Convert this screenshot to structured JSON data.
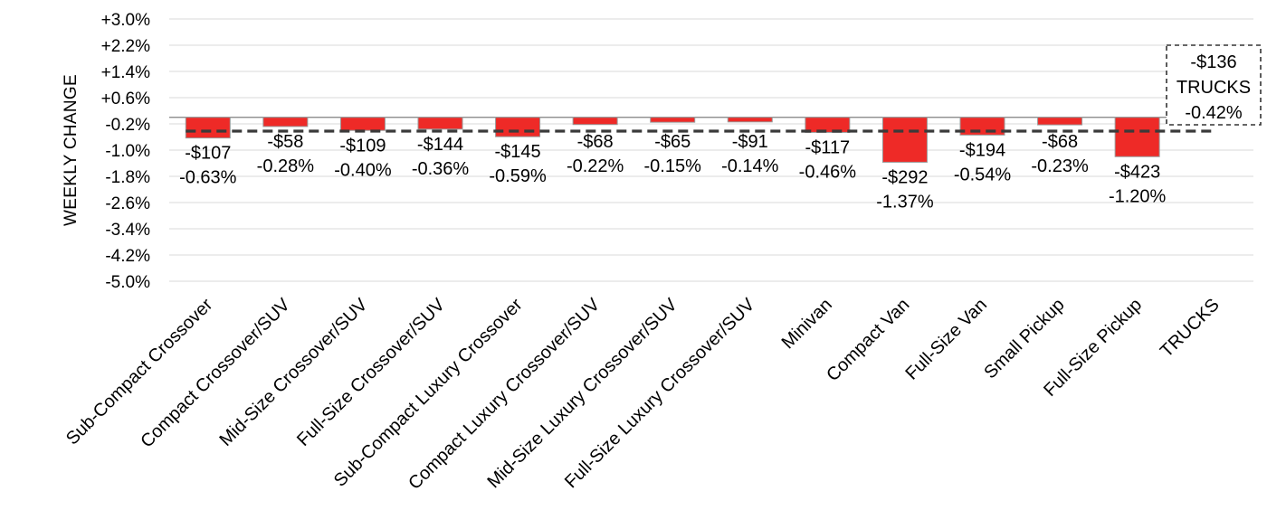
{
  "chart_data": {
    "type": "bar",
    "ylabel": "WEEKLY CHANGE",
    "ylim": [
      -5.0,
      3.0
    ],
    "yticks": [
      "+3.0%",
      "+2.2%",
      "+1.4%",
      "+0.6%",
      "-0.2%",
      "-1.0%",
      "-1.8%",
      "-2.6%",
      "-3.4%",
      "-4.2%",
      "-5.0%"
    ],
    "grid": true,
    "categories": [
      "Sub-Compact Crossover",
      "Compact Crossover/SUV",
      "Mid-Size Crossover/SUV",
      "Full-Size Crossover/SUV",
      "Sub-Compact Luxury Crossover",
      "Compact Luxury Crossover/SUV",
      "Mid-Size Luxury Crossover/SUV",
      "Full-Size Luxury Crossover/SUV",
      "Minivan",
      "Compact Van",
      "Full-Size Van",
      "Small Pickup",
      "Full-Size Pickup",
      "TRUCKS"
    ],
    "values": [
      -0.63,
      -0.28,
      -0.4,
      -0.36,
      -0.59,
      -0.22,
      -0.15,
      -0.14,
      -0.46,
      -1.37,
      -0.54,
      -0.23,
      -1.2,
      null
    ],
    "dollar_labels": [
      "-$107",
      "-$58",
      "-$109",
      "-$144",
      "-$145",
      "-$68",
      "-$65",
      "-$91",
      "-$117",
      "-$292",
      "-$194",
      "-$68",
      "-$423",
      ""
    ],
    "percent_labels": [
      "-0.63%",
      "-0.28%",
      "-0.40%",
      "-0.36%",
      "-0.59%",
      "-0.22%",
      "-0.15%",
      "-0.14%",
      "-0.46%",
      "-1.37%",
      "-0.54%",
      "-0.23%",
      "-1.20%",
      ""
    ],
    "reference_line": {
      "value": -0.42,
      "lines": [
        "-$136",
        "TRUCKS",
        "-0.42%"
      ]
    },
    "colors": {
      "bar_fill": "#ee2a27",
      "bar_stroke": "#9a9a9a",
      "grid": "#d9d9d9",
      "zero_line": "#7f7f7f",
      "reference": "#3a3a3a"
    }
  }
}
